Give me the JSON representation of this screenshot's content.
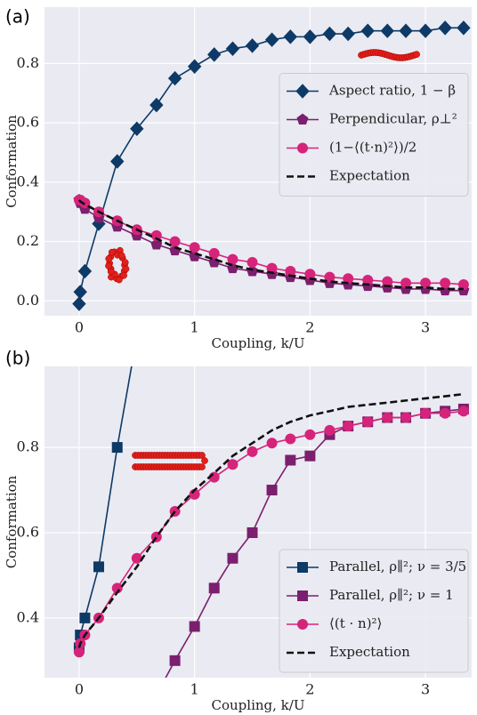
{
  "chart_data": [
    {
      "type": "line",
      "panel_label": "(a)",
      "x_label": "Coupling, k/U",
      "y_label": "Conformation",
      "xlim": [
        -0.3,
        3.4
      ],
      "ylim": [
        -0.05,
        0.99
      ],
      "xticks": [
        0,
        1,
        2,
        3
      ],
      "yticks": [
        {
          "value": 0,
          "label": "0.0"
        },
        0.2,
        0.4,
        0.6,
        0.8
      ],
      "grid": true,
      "legend": "center right",
      "x": [
        0,
        0.01,
        0.05,
        0.17,
        0.33,
        0.5,
        0.67,
        0.83,
        1.0,
        1.17,
        1.33,
        1.5,
        1.67,
        1.83,
        2.0,
        2.17,
        2.33,
        2.5,
        2.67,
        2.83,
        3.0,
        3.17,
        3.33
      ],
      "series": [
        {
          "name": "Aspect ratio, 1 − β",
          "color": "#0d3a66",
          "marker": "diamond",
          "values": [
            -0.01,
            0.03,
            0.1,
            0.26,
            0.47,
            0.58,
            0.66,
            0.75,
            0.79,
            0.83,
            0.85,
            0.86,
            0.88,
            0.89,
            0.89,
            0.9,
            0.9,
            0.91,
            0.91,
            0.91,
            0.91,
            0.92,
            0.92
          ]
        },
        {
          "name": "Perpendicular, ρ⊥²",
          "color": "#7b1f6e",
          "marker": "pentagon",
          "values": [
            0.34,
            0.33,
            0.31,
            0.28,
            0.25,
            0.22,
            0.19,
            0.17,
            0.15,
            0.13,
            0.11,
            0.1,
            0.09,
            0.08,
            0.07,
            0.06,
            0.055,
            0.05,
            0.045,
            0.04,
            0.04,
            0.035,
            0.035
          ]
        },
        {
          "name": "(1−⟨(t·n)²⟩)/2",
          "color": "#d6247a",
          "marker": "circle",
          "values": [
            0.34,
            0.34,
            0.33,
            0.3,
            0.27,
            0.24,
            0.22,
            0.2,
            0.18,
            0.16,
            0.14,
            0.13,
            0.11,
            0.1,
            0.09,
            0.08,
            0.075,
            0.07,
            0.065,
            0.06,
            0.06,
            0.06,
            0.055
          ]
        },
        {
          "name": "Expectation",
          "color": "#111111",
          "marker": "none",
          "dash": true,
          "values": [
            0.34,
            0.335,
            0.325,
            0.3,
            0.27,
            0.24,
            0.21,
            0.18,
            0.16,
            0.14,
            0.12,
            0.105,
            0.095,
            0.085,
            0.075,
            0.065,
            0.06,
            0.055,
            0.05,
            0.045,
            0.045,
            0.04,
            0.04
          ]
        }
      ]
    },
    {
      "type": "line",
      "panel_label": "(b)",
      "x_label": "Coupling, k/U",
      "y_label": "Conformation",
      "xlim": [
        -0.3,
        3.4
      ],
      "ylim": [
        0.26,
        0.99
      ],
      "xticks": [
        0,
        1,
        2,
        3
      ],
      "yticks": [
        0.4,
        0.6,
        0.8
      ],
      "grid": true,
      "legend": "lower right",
      "x": [
        0,
        0.01,
        0.05,
        0.17,
        0.33,
        0.5,
        0.67,
        0.83,
        1.0,
        1.17,
        1.33,
        1.5,
        1.67,
        1.83,
        2.0,
        2.17,
        2.33,
        2.5,
        2.67,
        2.83,
        3.0,
        3.17,
        3.33
      ],
      "series": [
        {
          "name": "Parallel, ρ∥²; ν = 3/5",
          "color": "#0d3a66",
          "marker": "square",
          "values": [
            0.33,
            0.36,
            0.4,
            0.52,
            0.8,
            1.06,
            null,
            null,
            null,
            null,
            null,
            null,
            null,
            null,
            null,
            null,
            null,
            null,
            null,
            null,
            null,
            null,
            null
          ]
        },
        {
          "name": "Parallel, ρ∥²; ν = 1",
          "color": "#7b1f6e",
          "marker": "square",
          "values": [
            null,
            null,
            null,
            null,
            null,
            null,
            0.22,
            0.3,
            0.38,
            0.47,
            0.54,
            0.6,
            0.7,
            0.77,
            0.78,
            0.83,
            0.85,
            0.86,
            0.87,
            0.87,
            0.88,
            0.885,
            0.89
          ]
        },
        {
          "name": "⟨(t · n)²⟩",
          "color": "#d6247a",
          "marker": "circle",
          "values": [
            0.32,
            0.34,
            0.36,
            0.4,
            0.47,
            0.54,
            0.59,
            0.65,
            0.69,
            0.73,
            0.76,
            0.79,
            0.81,
            0.82,
            0.83,
            0.84,
            0.85,
            0.86,
            0.87,
            0.87,
            0.88,
            0.88,
            0.885
          ]
        },
        {
          "name": "Expectation",
          "color": "#111111",
          "marker": "none",
          "dash": true,
          "values": [
            0.33,
            0.34,
            0.36,
            0.4,
            0.46,
            0.52,
            0.59,
            0.65,
            0.7,
            0.74,
            0.78,
            0.81,
            0.84,
            0.86,
            0.875,
            0.885,
            0.895,
            0.9,
            0.905,
            0.91,
            0.915,
            0.92,
            0.925
          ]
        }
      ]
    }
  ]
}
